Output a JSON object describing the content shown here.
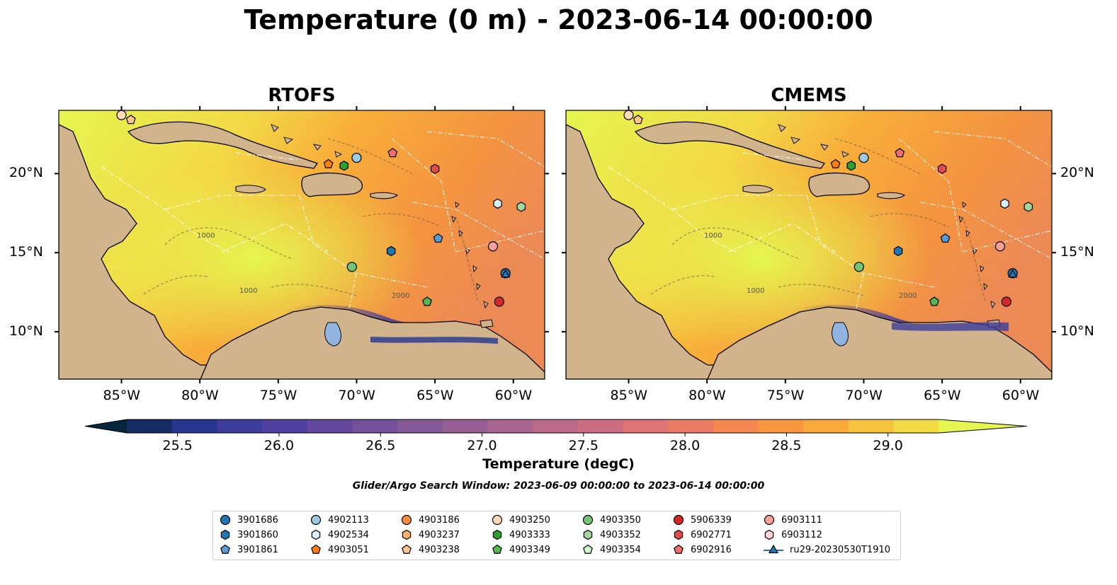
{
  "title": "Temperature (0 m) - 2023-06-14 00:00:00",
  "panels": [
    {
      "title": "RTOFS"
    },
    {
      "title": "CMEMS"
    }
  ],
  "lon_ticks": [
    "85°W",
    "80°W",
    "75°W",
    "70°W",
    "65°W",
    "60°W"
  ],
  "lat_ticks": [
    "20°N",
    "15°N",
    "10°N"
  ],
  "map_extent": {
    "lon": [
      -89,
      -58
    ],
    "lat": [
      7,
      24
    ]
  },
  "colorbar": {
    "label": "Temperature (degC)",
    "ticks": [
      "25.5",
      "26.0",
      "26.5",
      "27.0",
      "27.5",
      "28.0",
      "28.5",
      "29.0"
    ],
    "range": [
      25.25,
      29.25
    ],
    "colors": [
      "#03263a",
      "#142c62",
      "#263690",
      "#3c3c9c",
      "#4f3f9e",
      "#62479d",
      "#72519a",
      "#835a97",
      "#955f94",
      "#a86590",
      "#bc6a89",
      "#cd6e80",
      "#de7474",
      "#ec7b64",
      "#f58751",
      "#f9973f",
      "#f9a93a",
      "#f6c33d",
      "#f1dc45",
      "#e5f650"
    ]
  },
  "search_window": "Glider/Argo Search Window: 2023-06-09 00:00:00 to 2023-06-14 00:00:00",
  "legend": [
    {
      "label": "3901686",
      "marker": "circle",
      "color": "#1f77b4"
    },
    {
      "label": "3901860",
      "marker": "hexagon",
      "color": "#1f77b4"
    },
    {
      "label": "3901861",
      "marker": "pentagon",
      "color": "#5b9bd5"
    },
    {
      "label": "4902113",
      "marker": "circle",
      "color": "#9ecae1"
    },
    {
      "label": "4902534",
      "marker": "hexagon",
      "color": "#d9effa"
    },
    {
      "label": "4903051",
      "marker": "pentagon",
      "color": "#ff7f0e"
    },
    {
      "label": "4903186",
      "marker": "circle",
      "color": "#fd8d3c"
    },
    {
      "label": "4903237",
      "marker": "hexagon",
      "color": "#fdae6b"
    },
    {
      "label": "4903238",
      "marker": "pentagon",
      "color": "#fdc58f"
    },
    {
      "label": "4903250",
      "marker": "circle",
      "color": "#fdd9b5"
    },
    {
      "label": "4903333",
      "marker": "hexagon",
      "color": "#2ca02c"
    },
    {
      "label": "4903349",
      "marker": "pentagon",
      "color": "#55b74f"
    },
    {
      "label": "4903350",
      "marker": "circle",
      "color": "#74c476"
    },
    {
      "label": "4903352",
      "marker": "hexagon",
      "color": "#a1d99b"
    },
    {
      "label": "4903354",
      "marker": "pentagon",
      "color": "#d4f5cf"
    },
    {
      "label": "5906339",
      "marker": "circle",
      "color": "#d62728"
    },
    {
      "label": "6902771",
      "marker": "hexagon",
      "color": "#e34a4a"
    },
    {
      "label": "6902916",
      "marker": "pentagon",
      "color": "#f07070"
    },
    {
      "label": "6903111",
      "marker": "circle",
      "color": "#f4a09a"
    },
    {
      "label": "6903112",
      "marker": "hexagon",
      "color": "#fbd4cf"
    },
    {
      "label": "ru29-20230530T1910",
      "marker": "triangle-line",
      "color": "#1f77b4"
    }
  ],
  "floats": [
    {
      "id": "3901686",
      "lon": -60.5,
      "lat": 13.7
    },
    {
      "id": "3901860",
      "lon": -67.8,
      "lat": 15.1
    },
    {
      "id": "3901861",
      "lon": -64.8,
      "lat": 15.9
    },
    {
      "id": "4902113",
      "lon": -70.0,
      "lat": 21.0
    },
    {
      "id": "4902534",
      "lon": -61.0,
      "lat": 18.1
    },
    {
      "id": "4903051",
      "lon": -71.8,
      "lat": 20.6
    },
    {
      "id": "4903250",
      "lon": -85.0,
      "lat": 23.7
    },
    {
      "id": "4903238",
      "lon": -84.4,
      "lat": 23.4
    },
    {
      "id": "4903333",
      "lon": -70.8,
      "lat": 20.5
    },
    {
      "id": "4903349",
      "lon": -65.5,
      "lat": 11.9
    },
    {
      "id": "4903350",
      "lon": -70.3,
      "lat": 14.1
    },
    {
      "id": "4903352",
      "lon": -59.5,
      "lat": 17.9
    },
    {
      "id": "5906339",
      "lon": -60.9,
      "lat": 11.9
    },
    {
      "id": "6902771",
      "lon": -65.0,
      "lat": 20.3
    },
    {
      "id": "6902916",
      "lon": -67.7,
      "lat": 21.3
    },
    {
      "id": "6903111",
      "lon": -61.3,
      "lat": 15.4
    },
    {
      "id": "ru29-20230530T1910",
      "lon": -60.5,
      "lat": 13.6
    }
  ]
}
